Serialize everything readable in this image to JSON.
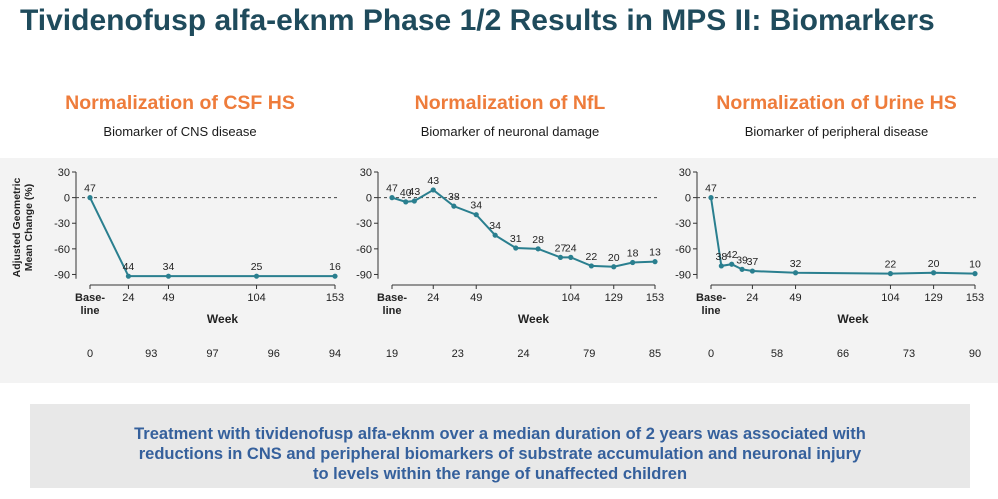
{
  "title": "Tividenofusp alfa-eknm Phase 1/2 Results in MPS II: Biomarkers",
  "panels": [
    {
      "title": "Normalization of CSF HS",
      "subtitle": "Biomarker of CNS disease"
    },
    {
      "title": "Normalization of NfL",
      "subtitle": "Biomarker of neuronal damage"
    },
    {
      "title": "Normalization of Urine HS",
      "subtitle": "Biomarker of peripheral disease"
    }
  ],
  "takeaway_lines": [
    "Treatment with tividenofusp alfa-eknm over a median duration of 2 years was associated with",
    "reductions in CNS and peripheral biomarkers of substrate accumulation and neuronal injury",
    "to levels within the range of unaffected children"
  ],
  "colors": {
    "title": "#1f4b5c",
    "panel_title": "#ee7c3b",
    "line": "#2a7f8f",
    "takeaway": "#35609c"
  },
  "chart_data": [
    {
      "type": "line",
      "title": "Normalization of CSF HS",
      "subtitle": "Biomarker of CNS disease",
      "ylabel": "Adjusted Geometric Mean Change (%)",
      "xlabel": "Week",
      "ylim": [
        -100,
        30
      ],
      "yticks": [
        30,
        0,
        -30,
        -60,
        -90
      ],
      "xticks": [
        "Base-line",
        "24",
        "49",
        "104",
        "153"
      ],
      "reference_line": 0,
      "x": [
        0,
        24,
        49,
        104,
        153
      ],
      "y": [
        0,
        -92,
        -92,
        -92,
        -92
      ],
      "point_labels": [
        "47",
        "44",
        "34",
        "25",
        "16"
      ],
      "bottom_counts": [
        "0",
        "93",
        "97",
        "96",
        "94"
      ]
    },
    {
      "type": "line",
      "title": "Normalization of NfL",
      "subtitle": "Biomarker of neuronal damage",
      "ylabel": "Adjusted Geometric Mean Change (%)",
      "xlabel": "Week",
      "ylim": [
        -100,
        30
      ],
      "yticks": [
        30,
        0,
        -30,
        -60,
        -90
      ],
      "xticks": [
        "Base-line",
        "24",
        "49",
        "104",
        "129",
        "153"
      ],
      "reference_line": 0,
      "x": [
        0,
        8,
        13,
        24,
        36,
        49,
        60,
        72,
        85,
        98,
        104,
        116,
        129,
        140,
        153
      ],
      "y": [
        0,
        -5,
        -4,
        9,
        -10,
        -20,
        -44,
        -59,
        -60,
        -70,
        -70,
        -80,
        -81,
        -76,
        -75
      ],
      "point_labels": [
        "47",
        "40",
        "43",
        "43",
        "38",
        "34",
        "34",
        "31",
        "28",
        "27",
        "24",
        "22",
        "20",
        "18",
        "13"
      ],
      "bottom_counts": [
        "19",
        "23",
        "24",
        "79",
        "85"
      ]
    },
    {
      "type": "line",
      "title": "Normalization of Urine HS",
      "subtitle": "Biomarker of peripheral disease",
      "ylabel": "Adjusted Geometric Mean Change (%)",
      "xlabel": "Week",
      "ylim": [
        -100,
        30
      ],
      "yticks": [
        30,
        0,
        -30,
        -60,
        -90
      ],
      "xticks": [
        "Base-line",
        "24",
        "49",
        "104",
        "129",
        "153"
      ],
      "reference_line": 0,
      "x": [
        0,
        6,
        12,
        18,
        24,
        49,
        104,
        129,
        153
      ],
      "y": [
        0,
        -80,
        -78,
        -84,
        -86,
        -88,
        -89,
        -88,
        -89
      ],
      "point_labels": [
        "47",
        "38",
        "42",
        "39",
        "37",
        "32",
        "22",
        "20",
        "10"
      ],
      "bottom_counts": [
        "0",
        "58",
        "66",
        "73",
        "90"
      ]
    }
  ]
}
